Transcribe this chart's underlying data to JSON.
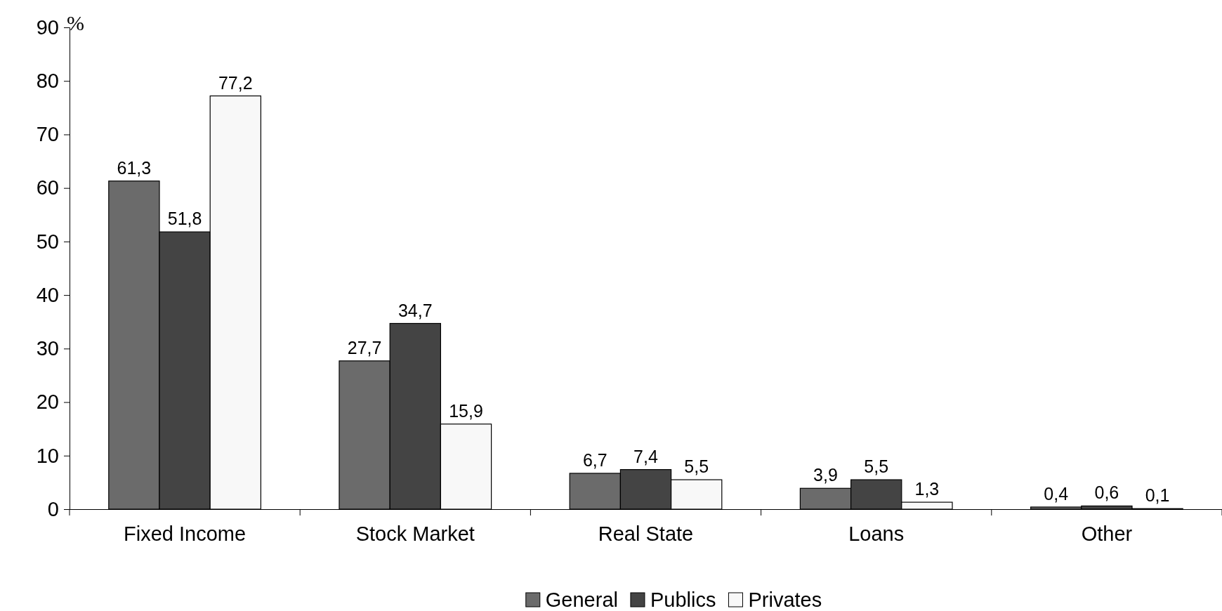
{
  "chart_data": {
    "type": "bar",
    "ylabel": "%",
    "categories": [
      "Fixed Income",
      "Stock Market",
      "Real State",
      "Loans",
      "Other"
    ],
    "series": [
      {
        "name": "General",
        "color": "#6b6b6b",
        "values": [
          61.3,
          27.7,
          6.7,
          3.9,
          0.4
        ],
        "value_labels": [
          "61,3",
          "27,7",
          "6,7",
          "3,9",
          "0,4"
        ]
      },
      {
        "name": "Publics",
        "color": "#444444",
        "values": [
          51.8,
          34.7,
          7.4,
          5.5,
          0.6
        ],
        "value_labels": [
          "51,8",
          "34,7",
          "7,4",
          "5,5",
          "0,6"
        ]
      },
      {
        "name": "Privates",
        "color": "#f8f8f8",
        "values": [
          77.2,
          15.9,
          5.5,
          1.3,
          0.1
        ],
        "value_labels": [
          "77,2",
          "15,9",
          "5,5",
          "1,3",
          "0,1"
        ]
      }
    ],
    "ylim": [
      0,
      90
    ],
    "yticks": [
      0,
      10,
      20,
      30,
      40,
      50,
      60,
      70,
      80,
      90
    ],
    "grid": false,
    "legend": "bottom"
  }
}
